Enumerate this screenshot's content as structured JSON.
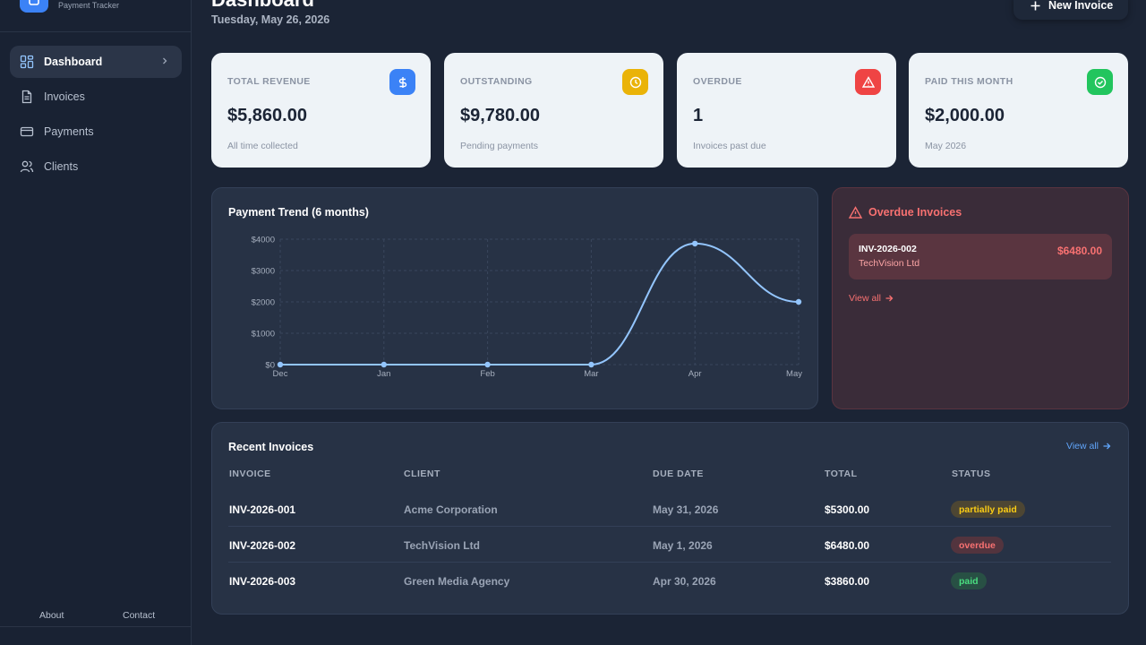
{
  "brand": {
    "subtitle": "Payment Tracker"
  },
  "sidebar": {
    "items": [
      {
        "label": "Dashboard",
        "icon": "dashboard-icon",
        "active": true
      },
      {
        "label": "Invoices",
        "icon": "file-icon"
      },
      {
        "label": "Payments",
        "icon": "credit-card-icon"
      },
      {
        "label": "Clients",
        "icon": "users-icon"
      }
    ],
    "footer": {
      "about": "About",
      "contact": "Contact"
    }
  },
  "header": {
    "title": "Dashboard",
    "date": "Tuesday, May 26, 2026",
    "new_invoice_label": "New Invoice"
  },
  "stats": [
    {
      "label": "TOTAL REVENUE",
      "value": "$5,860.00",
      "sub": "All time collected",
      "icon": "dollar-icon",
      "color": "#3b82f6"
    },
    {
      "label": "OUTSTANDING",
      "value": "$9,780.00",
      "sub": "Pending payments",
      "icon": "clock-icon",
      "color": "#eab308"
    },
    {
      "label": "OVERDUE",
      "value": "1",
      "sub": "Invoices past due",
      "icon": "alert-icon",
      "color": "#ef4444"
    },
    {
      "label": "PAID THIS MONTH",
      "value": "$2,000.00",
      "sub": "May 2026",
      "icon": "check-circle-icon",
      "color": "#22c55e"
    }
  ],
  "chart": {
    "title": "Payment Trend (6 months)"
  },
  "chart_data": {
    "type": "line",
    "title": "Payment Trend (6 months)",
    "categories": [
      "Dec",
      "Jan",
      "Feb",
      "Mar",
      "Apr",
      "May"
    ],
    "values": [
      0,
      0,
      0,
      0,
      3860,
      2000
    ],
    "yticks": [
      "$0",
      "$1000",
      "$2000",
      "$3000",
      "$4000"
    ],
    "ylim": [
      0,
      4000
    ],
    "grid": true,
    "line_color": "#93c5fd"
  },
  "overdue": {
    "title": "Overdue Invoices",
    "items": [
      {
        "id": "INV-2026-002",
        "client": "TechVision Ltd",
        "amount": "$6480.00"
      }
    ],
    "view_all": "View all"
  },
  "recent": {
    "title": "Recent Invoices",
    "view_all": "View all",
    "columns": [
      "INVOICE",
      "CLIENT",
      "DUE DATE",
      "TOTAL",
      "STATUS"
    ],
    "rows": [
      {
        "id": "INV-2026-001",
        "client": "Acme Corporation",
        "due": "May 31, 2026",
        "total": "$5300.00",
        "status": "partially paid"
      },
      {
        "id": "INV-2026-002",
        "client": "TechVision Ltd",
        "due": "May 1, 2026",
        "total": "$6480.00",
        "status": "overdue"
      },
      {
        "id": "INV-2026-003",
        "client": "Green Media Agency",
        "due": "Apr 30, 2026",
        "total": "$3860.00",
        "status": "paid"
      }
    ]
  }
}
